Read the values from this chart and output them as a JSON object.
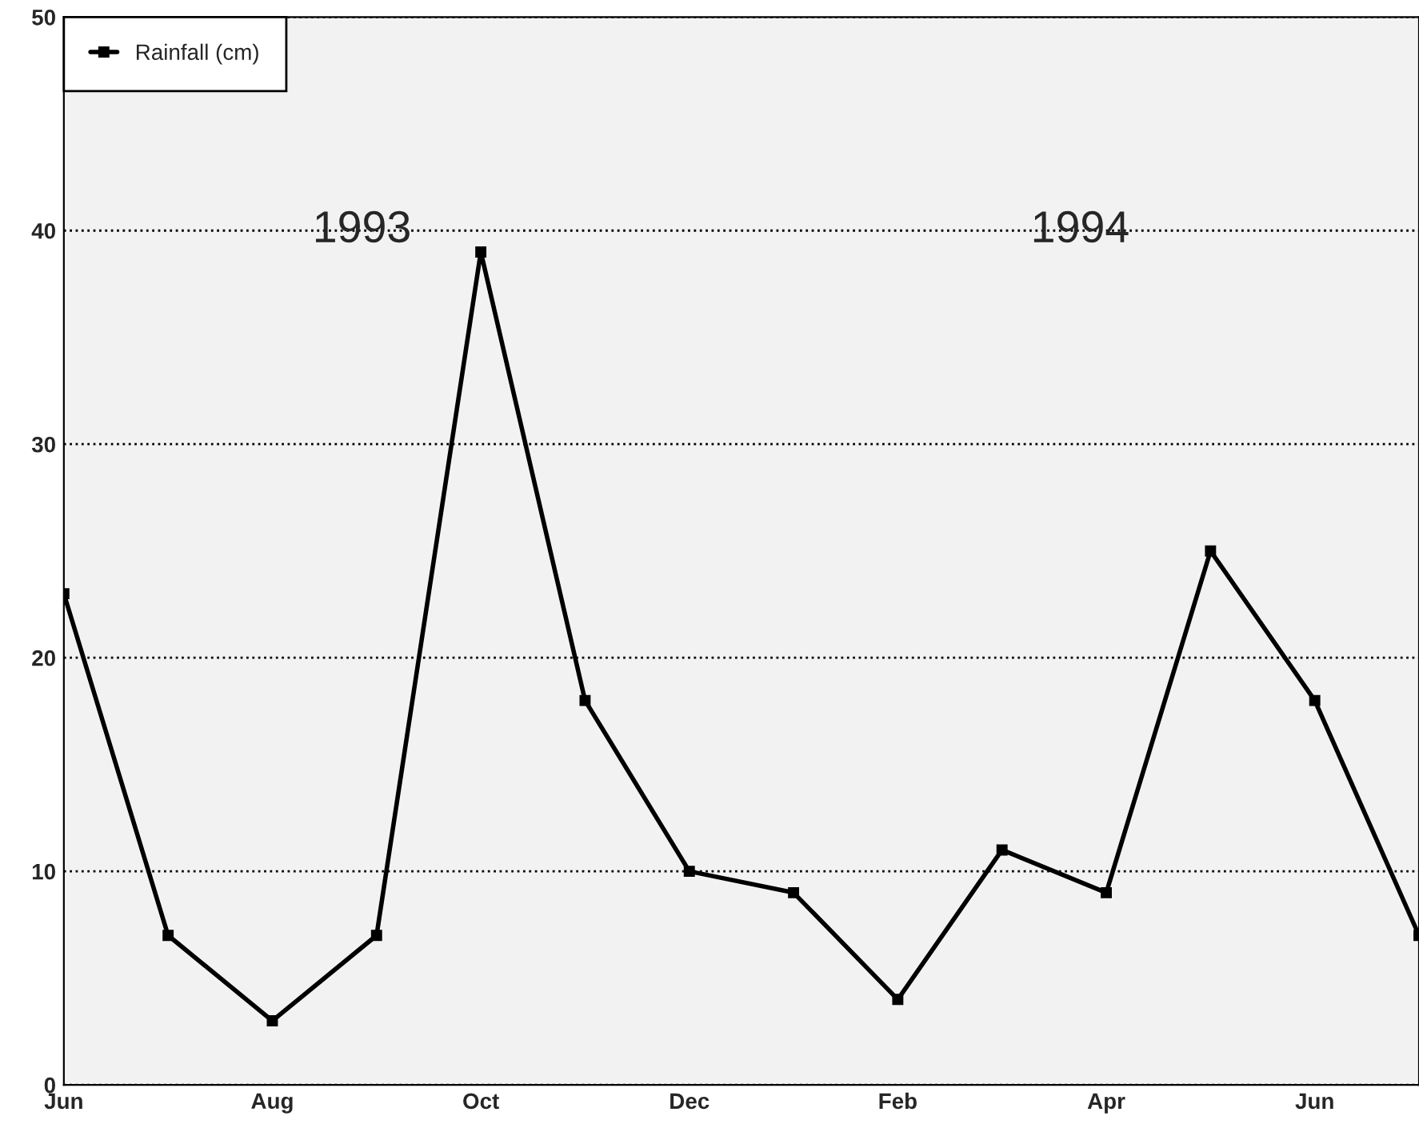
{
  "chart_data": {
    "type": "line",
    "categories": [
      "Jun",
      null,
      "Aug",
      null,
      "Oct",
      null,
      "Dec",
      null,
      "Feb",
      null,
      "Apr",
      null,
      "Jun",
      null
    ],
    "series": [
      {
        "name": "Rainfall (cm)",
        "color": "#000000",
        "values": [
          23,
          7,
          3,
          7,
          39,
          18,
          10,
          9,
          4,
          11,
          9,
          25,
          18,
          7
        ]
      }
    ],
    "ylim": [
      0,
      50
    ],
    "yticks": [
      0,
      10,
      20,
      30,
      40,
      50
    ],
    "grid": "y",
    "legend": "top left",
    "marker": "square",
    "line_style": "solid",
    "annotations": [
      "1993",
      "1994"
    ]
  }
}
